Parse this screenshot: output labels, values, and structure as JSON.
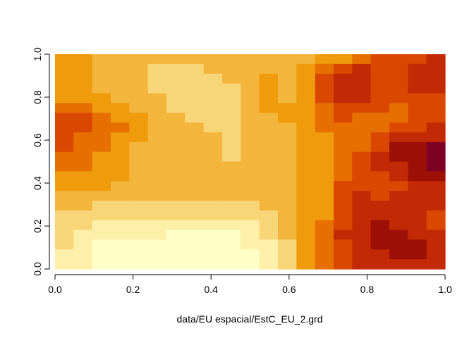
{
  "chart_data": {
    "type": "heatmap",
    "title": "",
    "xlabel": "data/EU espacial/EstC_EU_2.grd",
    "ylabel": "",
    "xlim": [
      0,
      1
    ],
    "ylim": [
      0,
      1
    ],
    "x_ticks": [
      "0.0",
      "0.2",
      "0.4",
      "0.6",
      "0.8",
      "1.0"
    ],
    "y_ticks": [
      "0.0",
      "0.2",
      "0.4",
      "0.6",
      "0.8",
      "1.0"
    ],
    "grid": false,
    "legend": "none",
    "palette": [
      "#FFFFC8",
      "#FEF0A8",
      "#F8D576",
      "#F3B53C",
      "#EF9B0C",
      "#E66F00",
      "#DA4700",
      "#C12A04",
      "#9E1006",
      "#7D0025"
    ],
    "row_order": "top-to-bottom (y from 1.0 down to 0.0)",
    "x_step": 0.05,
    "rows": [
      [
        4,
        4,
        3,
        3,
        3,
        3,
        3,
        3,
        3,
        3,
        3,
        3,
        3,
        3,
        4,
        4,
        5,
        6,
        6,
        6,
        7
      ],
      [
        4,
        4,
        3,
        3,
        3,
        2,
        2,
        2,
        3,
        3,
        3,
        3,
        3,
        4,
        5,
        6,
        7,
        6,
        6,
        7,
        7
      ],
      [
        4,
        4,
        3,
        3,
        3,
        2,
        2,
        2,
        2,
        3,
        3,
        4,
        3,
        4,
        6,
        7,
        7,
        6,
        6,
        7,
        7
      ],
      [
        4,
        4,
        3,
        3,
        3,
        2,
        2,
        2,
        2,
        2,
        3,
        4,
        3,
        4,
        6,
        7,
        7,
        6,
        6,
        7,
        7
      ],
      [
        4,
        4,
        4,
        3,
        3,
        3,
        2,
        2,
        2,
        2,
        3,
        4,
        3,
        4,
        6,
        7,
        7,
        6,
        6,
        6,
        6
      ],
      [
        5,
        5,
        4,
        4,
        3,
        3,
        2,
        2,
        2,
        2,
        3,
        4,
        4,
        4,
        5,
        6,
        6,
        6,
        5,
        6,
        6
      ],
      [
        6,
        6,
        5,
        4,
        4,
        3,
        3,
        2,
        2,
        2,
        3,
        3,
        4,
        4,
        5,
        6,
        5,
        5,
        5,
        6,
        6
      ],
      [
        6,
        6,
        5,
        5,
        4,
        3,
        3,
        3,
        2,
        2,
        3,
        3,
        3,
        4,
        5,
        5,
        5,
        5,
        6,
        6,
        7
      ],
      [
        6,
        5,
        5,
        4,
        4,
        3,
        3,
        3,
        3,
        2,
        3,
        3,
        3,
        4,
        4,
        5,
        5,
        6,
        7,
        7,
        7
      ],
      [
        6,
        5,
        5,
        4,
        3,
        3,
        3,
        3,
        3,
        2,
        3,
        3,
        3,
        4,
        4,
        5,
        5,
        6,
        8,
        8,
        9
      ],
      [
        5,
        5,
        4,
        4,
        3,
        3,
        3,
        3,
        3,
        2,
        3,
        3,
        3,
        4,
        4,
        5,
        6,
        7,
        8,
        8,
        9
      ],
      [
        5,
        5,
        4,
        4,
        3,
        3,
        3,
        3,
        3,
        3,
        3,
        3,
        3,
        4,
        4,
        5,
        6,
        7,
        7,
        8,
        9
      ],
      [
        4,
        4,
        4,
        4,
        3,
        3,
        3,
        3,
        3,
        3,
        3,
        3,
        3,
        4,
        4,
        5,
        6,
        6,
        7,
        8,
        8
      ],
      [
        4,
        4,
        4,
        3,
        3,
        3,
        3,
        3,
        3,
        3,
        3,
        3,
        3,
        4,
        4,
        6,
        6,
        6,
        6,
        7,
        7
      ],
      [
        3,
        3,
        3,
        3,
        3,
        3,
        3,
        3,
        3,
        3,
        3,
        3,
        3,
        4,
        4,
        6,
        7,
        6,
        7,
        7,
        7
      ],
      [
        3,
        3,
        2,
        2,
        2,
        2,
        2,
        2,
        2,
        2,
        2,
        3,
        3,
        4,
        4,
        6,
        7,
        7,
        7,
        7,
        7
      ],
      [
        2,
        2,
        2,
        2,
        2,
        2,
        2,
        2,
        2,
        2,
        2,
        2,
        3,
        4,
        4,
        6,
        7,
        7,
        7,
        7,
        6
      ],
      [
        2,
        2,
        1,
        1,
        1,
        1,
        1,
        1,
        1,
        1,
        1,
        2,
        3,
        4,
        5,
        6,
        7,
        8,
        7,
        7,
        6
      ],
      [
        2,
        1,
        1,
        1,
        1,
        1,
        0,
        0,
        0,
        0,
        1,
        2,
        3,
        4,
        5,
        7,
        7,
        8,
        8,
        7,
        7
      ],
      [
        2,
        1,
        0,
        0,
        0,
        0,
        0,
        0,
        0,
        0,
        1,
        1,
        2,
        4,
        5,
        6,
        7,
        8,
        8,
        8,
        7
      ],
      [
        1,
        1,
        0,
        0,
        0,
        0,
        0,
        0,
        0,
        0,
        0,
        1,
        2,
        4,
        5,
        6,
        7,
        7,
        8,
        8,
        7
      ],
      [
        1,
        1,
        0,
        0,
        0,
        0,
        0,
        0,
        0,
        0,
        0,
        1,
        2,
        4,
        5,
        6,
        7,
        7,
        7,
        7,
        7
      ]
    ]
  }
}
